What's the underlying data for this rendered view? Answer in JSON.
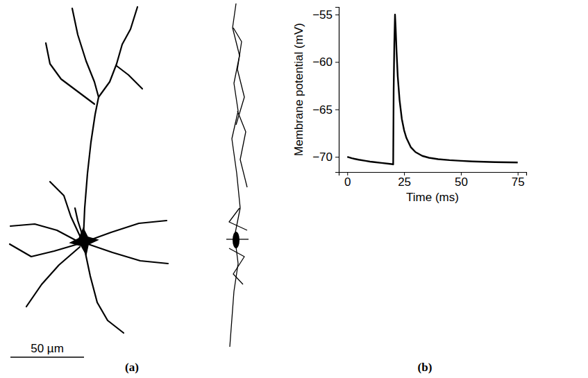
{
  "figure": {
    "panel_a": {
      "label": "(a)",
      "scale_bar_label": "50 µm"
    }
  },
  "chart_data": {
    "type": "line",
    "panel_label": "(b)",
    "x_label": "Time (ms)",
    "y_label": "Membrane potential (mV)",
    "x": [
      0,
      2,
      5,
      8,
      10,
      12,
      15,
      18,
      20,
      20.2,
      20.4,
      20.7,
      21,
      21.3,
      21.7,
      22.2,
      23,
      24,
      25,
      26,
      28,
      30,
      33,
      36,
      40,
      45,
      50,
      55,
      60,
      65,
      70,
      75
    ],
    "values": [
      -70.0,
      -70.15,
      -70.3,
      -70.42,
      -70.5,
      -70.56,
      -70.64,
      -70.72,
      -70.78,
      -70.8,
      -63,
      -58,
      -55,
      -56.5,
      -59,
      -61.5,
      -64,
      -66,
      -67.2,
      -68,
      -69,
      -69.5,
      -69.9,
      -70.1,
      -70.25,
      -70.35,
      -70.42,
      -70.48,
      -70.52,
      -70.56,
      -70.58,
      -70.6
    ],
    "color": "#000000",
    "xlim": [
      -3.75,
      78.75
    ],
    "ylim": [
      -71.6,
      -54.2
    ],
    "xticks": [
      0,
      25,
      50,
      75
    ],
    "yticks": [
      {
        "value": -70,
        "label": "−70"
      },
      {
        "value": -65,
        "label": "−65"
      },
      {
        "value": -60,
        "label": "−60"
      },
      {
        "value": -55,
        "label": "−55"
      }
    ],
    "grid": false
  }
}
